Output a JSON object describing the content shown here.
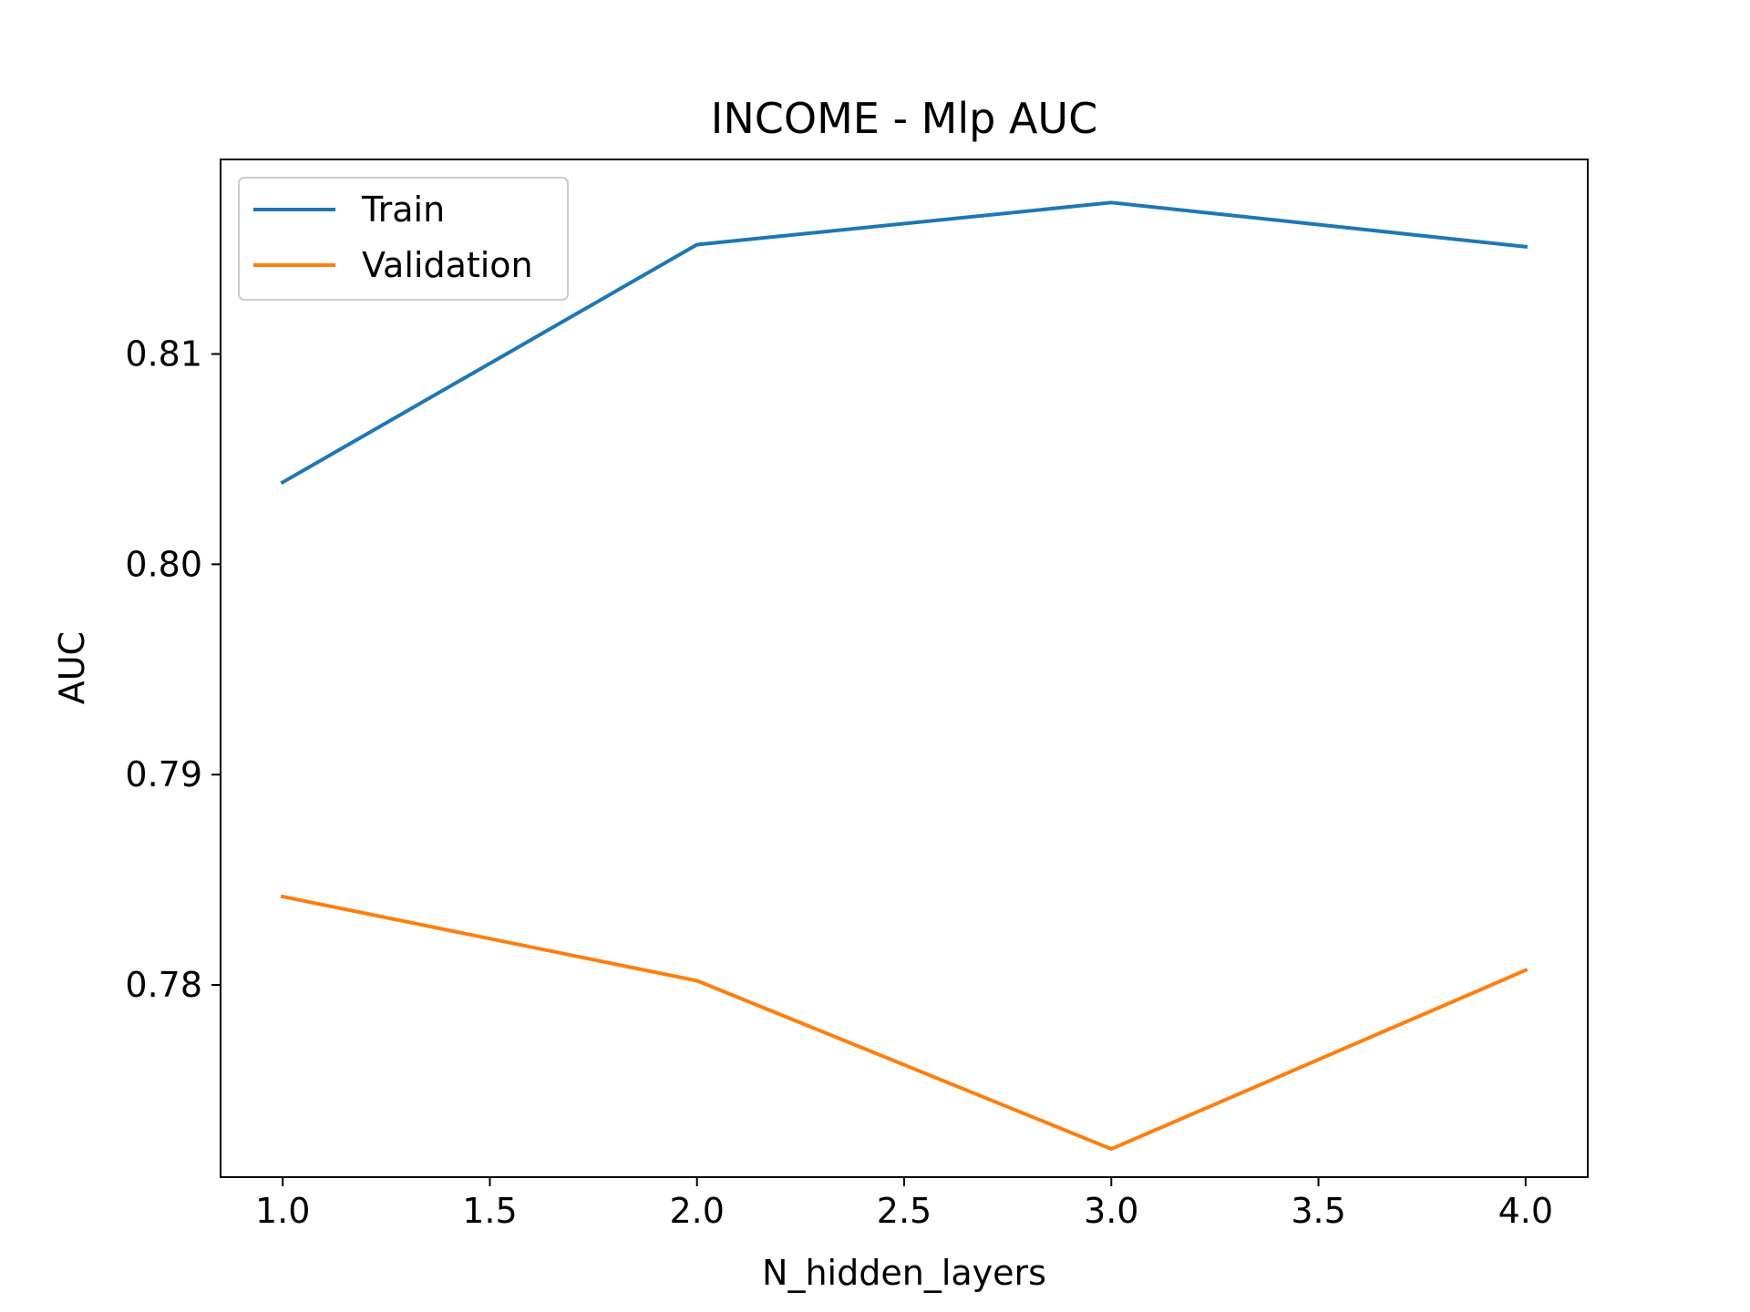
{
  "chart_data": {
    "type": "line",
    "title": "INCOME - Mlp AUC",
    "xlabel": "N_hidden_layers",
    "ylabel": "AUC",
    "x": [
      1.0,
      2.0,
      3.0,
      4.0
    ],
    "series": [
      {
        "name": "Train",
        "color": "#1f77b4",
        "values": [
          0.8039,
          0.8152,
          0.8172,
          0.8151
        ]
      },
      {
        "name": "Validation",
        "color": "#ff7f0e",
        "values": [
          0.7842,
          0.7802,
          0.7722,
          0.7807
        ]
      }
    ],
    "xlim": [
      0.85,
      4.15
    ],
    "ylim": [
      0.77086,
      0.81925
    ],
    "xticks": [
      1.0,
      1.5,
      2.0,
      2.5,
      3.0,
      3.5,
      4.0
    ],
    "xtick_labels": [
      "1.0",
      "1.5",
      "2.0",
      "2.5",
      "3.0",
      "3.5",
      "4.0"
    ],
    "yticks": [
      0.78,
      0.79,
      0.8,
      0.81
    ],
    "ytick_labels": [
      "0.78",
      "0.79",
      "0.80",
      "0.81"
    ],
    "legend_position": "upper-left",
    "grid": false
  }
}
